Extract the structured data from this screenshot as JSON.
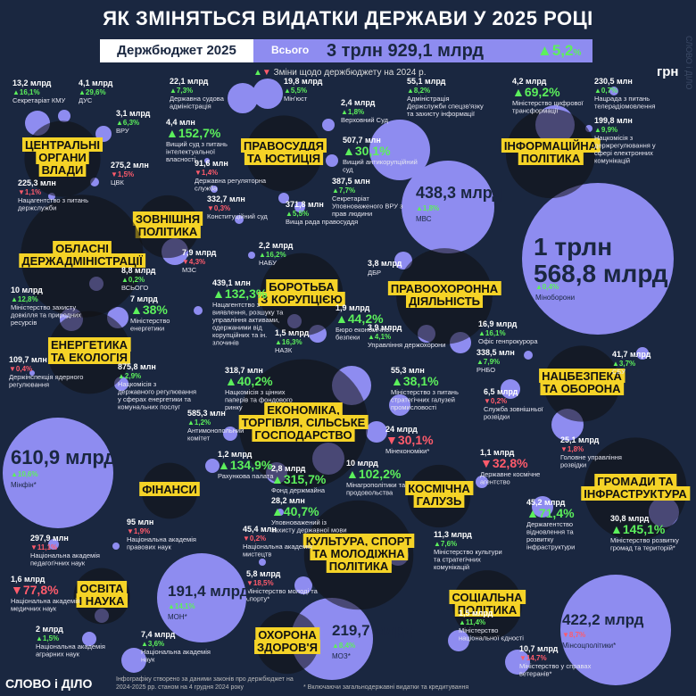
{
  "title": "ЯК ЗМІНЯТЬСЯ ВИДАТКИ ДЕРЖАВИ У 2025 РОЦІ",
  "header": {
    "budget_label": "Держбюджет 2025",
    "total_label": "Всього",
    "total_value": "3 трлн 929,1 млрд",
    "total_change": "5,2",
    "total_change_suffix": "%"
  },
  "legend": "Зміни щодо держбюджету на 2024 р.",
  "unit": "грн",
  "footer": {
    "logo": "СЛОВО і ДІЛО",
    "note": "Інфографіку створено за даними законів про держбюджет на 2024-2025 рр. станом на 4 грудня 2024 року",
    "footnote": "* Включаючи загальнодержавні видатки та кредитування"
  },
  "watermark": "СЛОВО і ДІЛО",
  "colors": {
    "background": "#1a2740",
    "bubble": "#8e8cf0",
    "label_bg": "#f5d327",
    "increase": "#5cf05c",
    "decrease": "#ff5b6b"
  },
  "chart_data": {
    "type": "bubble",
    "groups": [
      {
        "name": "ЦЕНТРАЛЬНІ ОРГАНИ ВЛАДИ",
        "items": [
          {
            "amount": "13,2 млрд",
            "change": "16,1",
            "dir": "up",
            "name": "Секретаріат КМУ"
          },
          {
            "amount": "4,1 млрд",
            "change": "29,6",
            "dir": "up",
            "name": "ДУС"
          },
          {
            "amount": "3,1 млрд",
            "change": "6,3",
            "dir": "up",
            "name": "ВРУ"
          },
          {
            "amount": "275,2 млн",
            "change": "1,5",
            "dir": "down",
            "name": "ЦВК"
          },
          {
            "amount": "225,3 млн",
            "change": "1,1",
            "dir": "down",
            "name": "Нацагентство з питань держслужби"
          }
        ]
      },
      {
        "name": "ПРАВОСУДДЯ ТА ЮСТИЦІЯ",
        "items": [
          {
            "amount": "22,1 млрд",
            "change": "7,3",
            "dir": "up",
            "name": "Державна судова адміністрація"
          },
          {
            "amount": "19,8 млрд",
            "change": "5,5",
            "dir": "up",
            "name": "Мін'юст"
          },
          {
            "amount": "2,4 млрд",
            "change": "1,8",
            "dir": "up",
            "name": "Верховний Суд"
          },
          {
            "amount": "4,4 млн",
            "change": "152,7",
            "dir": "up",
            "name": "Вищий суд з питань інтелектуальної власності"
          },
          {
            "amount": "507,7 млн",
            "change": "30,1",
            "dir": "up",
            "name": "Вищий антикорупційний суд"
          },
          {
            "amount": "91,6 млн",
            "change": "1,4",
            "dir": "down",
            "name": "Державна регуляторна служба"
          },
          {
            "amount": "387,5 млн",
            "change": "7,7",
            "dir": "up",
            "name": "Секретаріат Уповноваженого ВРУ з прав людини"
          },
          {
            "amount": "332,7 млн",
            "change": "0,3",
            "dir": "down",
            "name": "Конституційний суд"
          },
          {
            "amount": "371,8 млн",
            "change": "5,5",
            "dir": "up",
            "name": "Вища рада правосуддя"
          }
        ]
      },
      {
        "name": "ЗОВНІШНЯ ПОЛІТИКА",
        "items": [
          {
            "amount": "7,9 млрд",
            "change": "4,3",
            "dir": "down",
            "name": "МЗС"
          }
        ]
      },
      {
        "name": "ОБЛАСНІ ДЕРЖАДМІНІСТРАЦІЇ",
        "items": [
          {
            "amount": "8,8 млрд",
            "change": "0,2",
            "dir": "up",
            "name": "ВСЬОГО"
          }
        ]
      },
      {
        "name": "ЕНЕРГЕТИКА ТА ЕКОЛОГІЯ",
        "items": [
          {
            "amount": "10 млрд",
            "change": "12,8",
            "dir": "up",
            "name": "Міністерство захисту довкілля та природних ресурсів"
          },
          {
            "amount": "7 млрд",
            "change": "38",
            "dir": "up",
            "name": "Міністерство енергетики"
          },
          {
            "amount": "109,7 млн",
            "change": "0,4",
            "dir": "down",
            "name": "Держінспекція ядерного регулювання"
          },
          {
            "amount": "875,8 млн",
            "change": "2,9",
            "dir": "up",
            "name": "Нацкомісія з державного регулювання у сферах енергетики та комунальних послуг"
          }
        ]
      },
      {
        "name": "БОРОТЬБА З КОРУПЦІЄЮ",
        "items": [
          {
            "amount": "2,2 млрд",
            "change": "16,2",
            "dir": "up",
            "name": "НАБУ"
          },
          {
            "amount": "439,1 млн",
            "change": "132,3",
            "dir": "up",
            "name": "Нацагентство з виявлення, розшуку та управління активами, одержаними від корупційних та ін. злочинів"
          },
          {
            "amount": "1,9 млрд",
            "change": "44,2",
            "dir": "up",
            "name": "Бюро економічної безпеки"
          },
          {
            "amount": "1,5 млрд",
            "change": "16,3",
            "dir": "up",
            "name": "НАЗК"
          }
        ]
      },
      {
        "name": "ПРАВООХОРОННА ДІЯЛЬНІСТЬ",
        "items": [
          {
            "amount": "438,3 млрд",
            "change": "1,8",
            "dir": "up",
            "name": "МВС"
          },
          {
            "amount": "55,1 млрд",
            "change": "8,2",
            "dir": "up",
            "name": "Адміністрація Держслужби спецзв'язку та захисту інформації"
          },
          {
            "amount": "3,8 млрд",
            "change": "",
            "dir": "none",
            "name": "ДБР"
          },
          {
            "amount": "3,9 млрд",
            "change": "4,1",
            "dir": "up",
            "name": "Управління держохорони"
          },
          {
            "amount": "16,9 млрд",
            "change": "16,1",
            "dir": "up",
            "name": "Офіс генпрокурора"
          }
        ]
      },
      {
        "name": "ІНФОРМАЦІЙНА ПОЛІТИКА",
        "items": [
          {
            "amount": "4,2 млрд",
            "change": "69,2",
            "dir": "up",
            "name": "Міністерство цифрової трансформації"
          },
          {
            "amount": "230,5 млн",
            "change": "0,7",
            "dir": "up",
            "name": "Нацрада з питань телерадіомовлення"
          },
          {
            "amount": "199,8 млн",
            "change": "9,9",
            "dir": "up",
            "name": "Нацкомісія з держрегулювання у сфері електронних комунікацій"
          }
        ]
      },
      {
        "name": "НАЦБЕЗПЕКА ТА ОБОРОНА",
        "items": [
          {
            "amount": "1 трлн 568,8 млрд",
            "change": "0,4",
            "dir": "up",
            "name": "Міноборони"
          },
          {
            "amount": "338,5 млн",
            "change": "7,9",
            "dir": "up",
            "name": "РНБО"
          },
          {
            "amount": "41,7 млрд",
            "change": "3,7",
            "dir": "up",
            "name": "СБУ"
          },
          {
            "amount": "6,5 млрд",
            "change": "0,2",
            "dir": "down",
            "name": "Служба зовнішньої розвідки"
          },
          {
            "amount": "25,1 млрд",
            "change": "1,8",
            "dir": "down",
            "name": "Головне управління розвідки"
          }
        ]
      },
      {
        "name": "ЕКОНОМІКА, ТОРГІВЛЯ, СІЛЬСЬКЕ ГОСПОДАРСТВО",
        "items": [
          {
            "amount": "318,7 млн",
            "change": "40,2",
            "dir": "up",
            "name": "Нацкомісія з цінних паперів та фондового ринку"
          },
          {
            "amount": "55,3 млн",
            "change": "38,1",
            "dir": "up",
            "name": "Міністерство з питань стратегічних галузей промисловості"
          },
          {
            "amount": "585,3 млн",
            "change": "1,2",
            "dir": "up",
            "name": "Антимонопольний комітет"
          },
          {
            "amount": "24 млрд",
            "change": "30,1",
            "dir": "down",
            "name": "Мінекономіки*"
          },
          {
            "amount": "1,2 млрд",
            "change": "134,9",
            "dir": "up",
            "name": "Рахункова палата"
          },
          {
            "amount": "2,8 млрд",
            "change": "315,7",
            "dir": "up",
            "name": "Фонд держмайна"
          },
          {
            "amount": "10 млрд",
            "change": "102,2",
            "dir": "up",
            "name": "Мінагрополітики та продовольства"
          },
          {
            "amount": "28,2 млн",
            "change": "40,7",
            "dir": "up",
            "name": "Уповноважений із захисту державної мови"
          }
        ]
      },
      {
        "name": "ФІНАНСИ",
        "items": [
          {
            "amount": "610,9 млрд",
            "change": "10,6",
            "dir": "up",
            "name": "Мінфін*"
          }
        ]
      },
      {
        "name": "КОСМІЧНА ГАЛУЗЬ",
        "items": [
          {
            "amount": "1,1 млрд",
            "change": "32,8",
            "dir": "down",
            "name": "Державне космічне агентство"
          }
        ]
      },
      {
        "name": "ГРОМАДИ ТА ІНФРАСТРУКТУРА",
        "items": [
          {
            "amount": "45,2 млрд",
            "change": "71,4",
            "dir": "up",
            "name": "Держагентство відновлення та розвитку інфраструктури"
          },
          {
            "amount": "30,8 млрд",
            "change": "145,1",
            "dir": "up",
            "name": "Міністерство розвитку громад та територій*"
          }
        ]
      },
      {
        "name": "КУЛЬТУРА, СПОРТ ТА МОЛОДІЖНА ПОЛІТИКА",
        "items": [
          {
            "amount": "45,4 млн",
            "change": "0,2",
            "dir": "down",
            "name": "Національна академія мистецтв"
          },
          {
            "amount": "11,3 млрд",
            "change": "7,6",
            "dir": "up",
            "name": "Міністерство культури та стратегічних комунікацій"
          },
          {
            "amount": "5,8 млрд",
            "change": "18,5",
            "dir": "down",
            "name": "Міністерство молоді та спорту*"
          }
        ]
      },
      {
        "name": "ОСВІТА І НАУКА",
        "items": [
          {
            "amount": "95 млн",
            "change": "1,9",
            "dir": "down",
            "name": "Національна академія правових наук"
          },
          {
            "amount": "297,9 млн",
            "change": "11,1",
            "dir": "down",
            "name": "Національна академія педагогічних наук"
          },
          {
            "amount": "1,6 млрд",
            "change": "77,8",
            "dir": "down",
            "name": "Національна академія медичних наук"
          },
          {
            "amount": "2 млрд",
            "change": "1,5",
            "dir": "up",
            "name": "Національна академія аграрних наук"
          },
          {
            "amount": "191,4 млрд",
            "change": "14,1",
            "dir": "up",
            "name": "МОН*"
          },
          {
            "amount": "7,4 млрд",
            "change": "3,6",
            "dir": "up",
            "name": "Національна академія наук"
          }
        ]
      },
      {
        "name": "ОХОРОНА ЗДОРОВ'Я",
        "items": [
          {
            "amount": "219,7 млрд",
            "change": "8,4",
            "dir": "up",
            "name": "МОЗ*"
          }
        ]
      },
      {
        "name": "СОЦІАЛЬНА ПОЛІТИКА",
        "items": [
          {
            "amount": "1,5 млрд",
            "change": "11,4",
            "dir": "up",
            "name": "Міністерство національної єдності"
          },
          {
            "amount": "422,2 млрд",
            "change": "8,7",
            "dir": "down",
            "name": "Мінсоцполітики*"
          },
          {
            "amount": "10,7 млрд",
            "change": "14,7",
            "dir": "down",
            "name": "Міністерство у справах ветеранів*"
          }
        ]
      }
    ]
  }
}
